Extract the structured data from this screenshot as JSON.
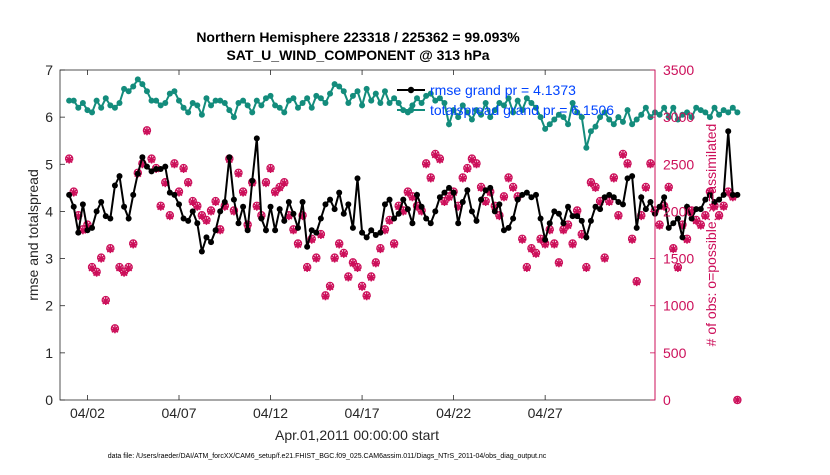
{
  "chart_data": {
    "type": "line",
    "title_line1": "Northern Hemisphere 223318 / 225362 = 99.093%",
    "title_line2": "SAT_U_WIND_COMPONENT @ 313 hPa",
    "xlabel": "Apr.01,2011 00:00:00 start",
    "ylabel_left": "rmse and totalspread",
    "ylabel_right": "# of obs: o=possible; ∗=assimilated",
    "footer": "data file: /Users/raeder/DAI/ATM_forcXX/CAM6_setup/f.e21.FHIST_BGC.f09_025.CAM6assim.011/Diags_NTrS_2011-04/obs_diag_output.nc",
    "xlim": [
      0.5,
      33.0
    ],
    "ylim_left": [
      0,
      7
    ],
    "ylim_right": [
      0,
      3500
    ],
    "x_ticks": [
      2,
      7,
      12,
      17,
      22,
      27
    ],
    "x_tick_labels": [
      "04/02",
      "04/07",
      "04/12",
      "04/17",
      "04/22",
      "04/27"
    ],
    "y_ticks_left": [
      0,
      1,
      2,
      3,
      4,
      5,
      6,
      7
    ],
    "y_ticks_right": [
      0,
      500,
      1000,
      1500,
      2000,
      2500,
      3000,
      3500
    ],
    "grid": false,
    "legend_position": "top-right",
    "colors": {
      "rmse": "#000000",
      "totalspread": "#138C7C",
      "obs": "#CC0F5A",
      "legend_text": "#0044FF"
    },
    "x_start": 1.0,
    "x_step": 0.25,
    "series": [
      {
        "name": "rmse grand pr = 4.1373",
        "axis": "left",
        "values": [
          4.35,
          4.1,
          3.55,
          4.15,
          3.6,
          3.65,
          4.0,
          4.2,
          3.9,
          3.85,
          4.55,
          4.75,
          4.1,
          3.85,
          4.35,
          4.8,
          5.15,
          4.95,
          4.85,
          4.9,
          4.9,
          4.95,
          4.4,
          4.35,
          4.15,
          3.85,
          3.8,
          4.0,
          3.75,
          3.15,
          3.45,
          3.35,
          3.6,
          4.0,
          4.2,
          5.15,
          4.25,
          3.75,
          4.1,
          3.6,
          4.65,
          5.55,
          3.85,
          3.6,
          4.1,
          3.6,
          4.05,
          3.8,
          4.2,
          3.95,
          3.65,
          4.2,
          3.25,
          3.6,
          3.55,
          3.85,
          4.15,
          4.25,
          4.05,
          4.4,
          3.95,
          4.15,
          3.65,
          4.7,
          3.55,
          3.45,
          3.6,
          3.5,
          3.55,
          4.15,
          4.25,
          3.85,
          3.95,
          4.25,
          4.05,
          3.75,
          4.35,
          4.1,
          3.85,
          3.75,
          4.0,
          4.3,
          4.4,
          4.5,
          4.4,
          3.75,
          4.2,
          4.45,
          4.0,
          3.8,
          4.25,
          4.45,
          4.5,
          4.0,
          4.15,
          3.6,
          3.65,
          3.85,
          4.25,
          4.35,
          4.4,
          4.3,
          4.35,
          3.85,
          3.4,
          3.75,
          4.0,
          3.95,
          3.75,
          4.1,
          3.9,
          3.9,
          3.8,
          3.45,
          3.8,
          4.1,
          4.05,
          4.3,
          4.35,
          4.3,
          4.2,
          4.15,
          4.7,
          4.75,
          3.65,
          4.3,
          4.05,
          4.2,
          3.95,
          4.1,
          4.3,
          3.65,
          3.75,
          3.85,
          3.45,
          4.1,
          3.85,
          4.05,
          4.05,
          4.25,
          4.35,
          4.2,
          4.25,
          4.35,
          5.7,
          4.35,
          4.35
        ],
        "marker": "filled-circle"
      },
      {
        "name": "totalspread grand pr = 6.1506",
        "axis": "left",
        "values": [
          6.35,
          6.35,
          6.2,
          6.3,
          6.15,
          6.1,
          6.35,
          6.2,
          6.4,
          6.25,
          6.2,
          6.3,
          6.6,
          6.55,
          6.65,
          6.8,
          6.7,
          6.55,
          6.35,
          6.35,
          6.25,
          6.3,
          6.5,
          6.55,
          6.35,
          6.2,
          6.1,
          6.3,
          6.25,
          6.05,
          6.4,
          6.25,
          6.35,
          6.35,
          6.3,
          6.15,
          6.0,
          6.3,
          6.35,
          6.25,
          6.1,
          6.35,
          6.25,
          6.4,
          6.45,
          6.25,
          6.2,
          6.1,
          6.35,
          6.4,
          6.2,
          6.3,
          6.4,
          6.2,
          6.45,
          6.4,
          6.3,
          6.5,
          6.7,
          6.65,
          6.55,
          6.3,
          6.45,
          6.55,
          6.25,
          6.6,
          6.35,
          6.5,
          6.3,
          6.55,
          6.3,
          6.4,
          6.3,
          6.15,
          6.1,
          6.25,
          6.4,
          6.3,
          6.45,
          6.5,
          6.35,
          6.4,
          6.3,
          5.85,
          6.15,
          6.0,
          6.25,
          6.1,
          5.95,
          6.15,
          6.05,
          6.3,
          6.0,
          6.15,
          6.3,
          6.25,
          6.4,
          6.1,
          6.35,
          6.15,
          6.4,
          6.3,
          6.2,
          6.0,
          5.75,
          5.85,
          5.95,
          6.05,
          6.0,
          5.85,
          6.3,
          6.1,
          6.0,
          5.35,
          5.7,
          5.8,
          6.0,
          6.1,
          5.95,
          5.85,
          6.0,
          5.9,
          6.15,
          5.85,
          5.95,
          6.05,
          6.2,
          6.0,
          6.1,
          6.05,
          6.2,
          6.0,
          6.2,
          5.95,
          6.05,
          6.1,
          6.0,
          6.2,
          6.15,
          6.1,
          6.0,
          6.2,
          6.05,
          6.15,
          6.1,
          6.2,
          6.1
        ],
        "marker": "filled-circle"
      },
      {
        "name": "obs assimilated",
        "axis": "right",
        "values": [
          2550,
          2200,
          1950,
          1800,
          1850,
          1400,
          1350,
          1500,
          1050,
          1600,
          750,
          1400,
          1350,
          1400,
          1650,
          2400,
          2500,
          2850,
          2550,
          2450,
          2050,
          2300,
          1950,
          2500,
          2200,
          2450,
          2300,
          2100,
          2050,
          1950,
          1900,
          2000,
          2100,
          1800,
          2050,
          2550,
          2000,
          2400,
          2200,
          1850,
          2300,
          2050,
          1950,
          2300,
          2450,
          2200,
          2250,
          2300,
          1950,
          1800,
          1650,
          1950,
          1400,
          1700,
          1500,
          1750,
          1100,
          1200,
          1500,
          1650,
          1550,
          1300,
          1450,
          1400,
          1200,
          1100,
          1300,
          1450,
          1600,
          1800,
          1900,
          1650,
          2050,
          2000,
          2200,
          2150,
          2050,
          2000,
          2500,
          2350,
          2600,
          2550,
          2100,
          2150,
          2200,
          2050,
          2350,
          2450,
          2550,
          2500,
          2250,
          2100,
          2200,
          2050,
          1950,
          2150,
          2350,
          2250,
          2150,
          1700,
          1400,
          1600,
          1550,
          1700,
          1650,
          1800,
          1650,
          1450,
          1800,
          1850,
          1650,
          2000,
          1750,
          1400,
          2300,
          2250,
          2100,
          1500,
          2100,
          2350,
          1950,
          2600,
          2500,
          1700,
          1250,
          1950,
          2250,
          2500,
          2000,
          1850,
          2050,
          2250,
          1600,
          1400,
          1850,
          1700,
          2000,
          1900,
          1850,
          1950,
          2200,
          2050,
          1950,
          2050,
          2200,
          2150,
          0
        ],
        "marker": "asterisk"
      },
      {
        "name": "obs possible",
        "axis": "right",
        "values": [
          2560,
          2210,
          1960,
          1810,
          1860,
          1410,
          1360,
          1510,
          1060,
          1610,
          760,
          1410,
          1360,
          1410,
          1660,
          2410,
          2510,
          2860,
          2560,
          2460,
          2060,
          2310,
          1960,
          2510,
          2210,
          2460,
          2310,
          2110,
          2060,
          1960,
          1910,
          2010,
          2110,
          1810,
          2060,
          2560,
          2010,
          2410,
          2210,
          1860,
          2310,
          2060,
          1960,
          2310,
          2460,
          2210,
          2260,
          2310,
          1960,
          1810,
          1660,
          1960,
          1410,
          1710,
          1510,
          1760,
          1110,
          1210,
          1510,
          1660,
          1560,
          1310,
          1460,
          1410,
          1210,
          1110,
          1310,
          1460,
          1610,
          1810,
          1910,
          1660,
          2060,
          2010,
          2210,
          2160,
          2060,
          2010,
          2510,
          2360,
          2610,
          2560,
          2110,
          2160,
          2210,
          2060,
          2360,
          2460,
          2560,
          2510,
          2260,
          2110,
          2210,
          2060,
          1960,
          2160,
          2360,
          2260,
          2160,
          1710,
          1410,
          1610,
          1560,
          1710,
          1660,
          1810,
          1660,
          1460,
          1810,
          1860,
          1660,
          2010,
          1760,
          1410,
          2310,
          2260,
          2110,
          1510,
          2110,
          2360,
          1960,
          2610,
          2510,
          1710,
          1260,
          1960,
          2260,
          2510,
          2010,
          1860,
          2060,
          2260,
          1610,
          1410,
          1860,
          1710,
          2010,
          1910,
          1860,
          1960,
          2210,
          2060,
          1960,
          2060,
          2210,
          2160,
          0
        ],
        "marker": "open-circle"
      }
    ]
  }
}
